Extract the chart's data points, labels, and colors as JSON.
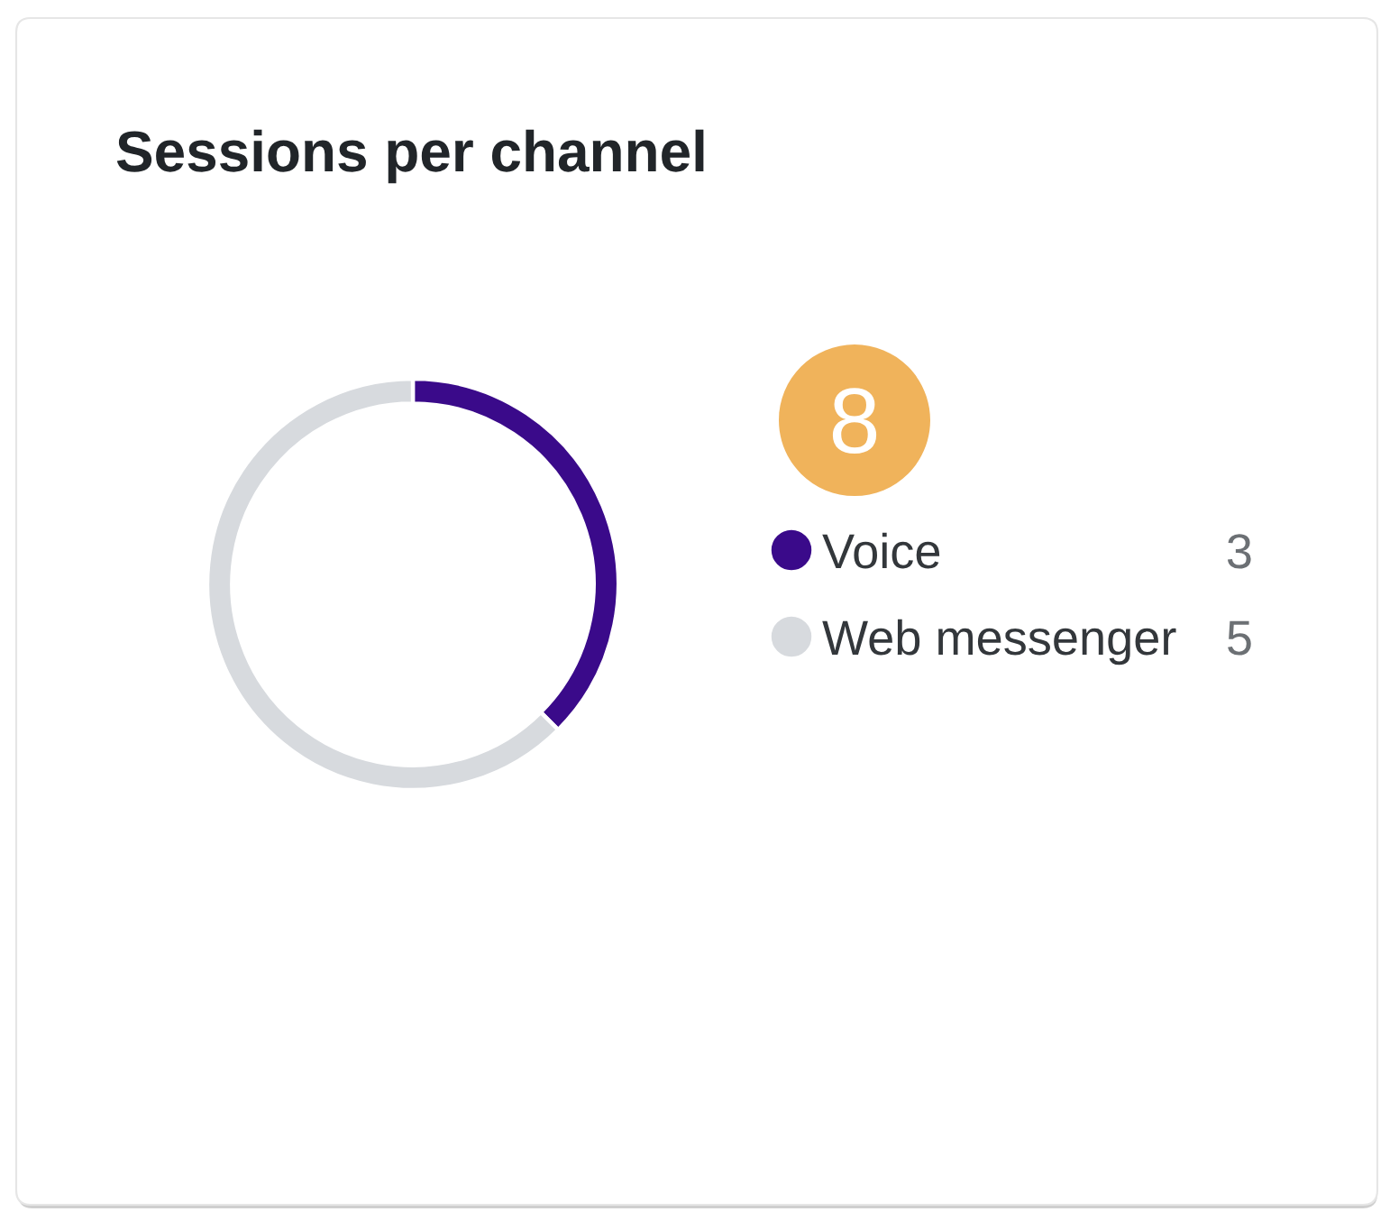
{
  "chart_data": {
    "type": "donut",
    "title": "Sessions per channel",
    "categories": [
      "Voice",
      "Web messenger"
    ],
    "values": [
      3,
      5
    ],
    "colors": [
      "#3a0a8a",
      "#d7dade"
    ],
    "legend": "right",
    "data_labels": true,
    "annotations": [
      "8"
    ]
  }
}
